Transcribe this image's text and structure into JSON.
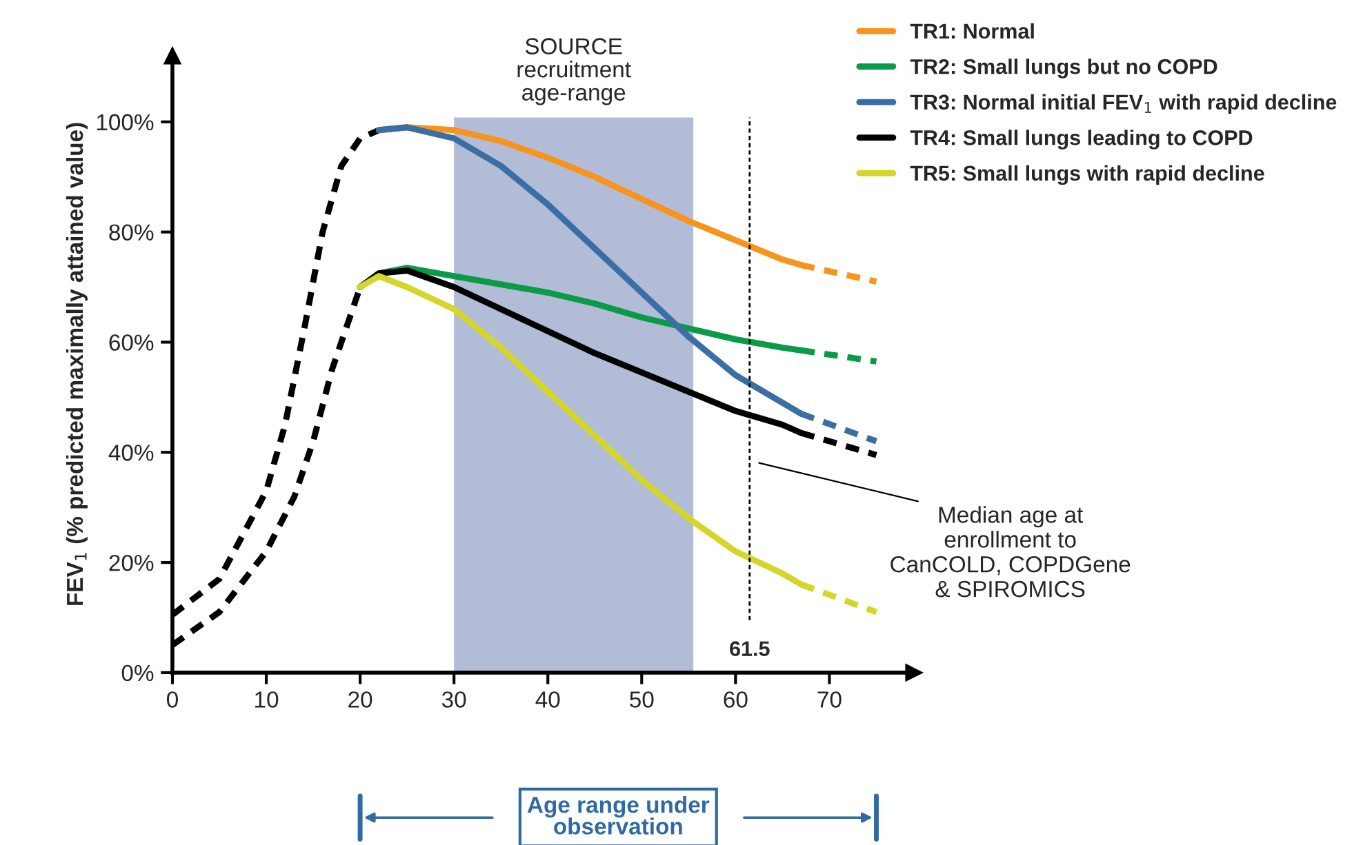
{
  "chart_data": {
    "type": "line",
    "ylabel": "FEV$_{1}$ (% predicted maximally attained value)",
    "xlim": [
      0,
      79
    ],
    "ylim": [
      0,
      112
    ],
    "xticks": [
      0,
      10,
      20,
      30,
      40,
      50,
      60,
      70
    ],
    "yticks": [
      {
        "value": 0,
        "label": "0%"
      },
      {
        "value": 20,
        "label": "20%"
      },
      {
        "value": 40,
        "label": "40%"
      },
      {
        "value": 60,
        "label": "60%"
      },
      {
        "value": 80,
        "label": "80%"
      },
      {
        "value": 100,
        "label": "100%"
      }
    ],
    "grid": false,
    "legend": "top right",
    "marker": "none",
    "series": [
      {
        "color": "#000000",
        "line_style": "dashed",
        "x": [
          0,
          5,
          10,
          12,
          14,
          16,
          18,
          20,
          22
        ],
        "values": [
          10.5,
          17,
          33,
          45,
          62,
          80,
          92,
          97,
          98.5
        ]
      },
      {
        "color": "#000000",
        "line_style": "dashed",
        "x": [
          0,
          5,
          10,
          13,
          15,
          17,
          19,
          20
        ],
        "values": [
          5,
          11,
          22,
          32,
          42,
          55,
          65,
          70
        ]
      },
      {
        "name": "TR1: Normal",
        "color": "#f7941d",
        "line_style": "solid",
        "x": [
          22,
          25,
          30,
          35,
          40,
          45,
          50,
          55,
          60,
          65,
          67
        ],
        "values": [
          98.5,
          99,
          98.5,
          96.5,
          93.5,
          90,
          86,
          82,
          78.5,
          75,
          74
        ]
      },
      {
        "name": "TR2: Small lungs but no COPD",
        "color": "#0a9a48",
        "line_style": "solid",
        "x": [
          20,
          22,
          25,
          30,
          35,
          40,
          45,
          50,
          55,
          60,
          65,
          67
        ],
        "values": [
          70,
          72.5,
          73.5,
          72,
          70.5,
          69,
          67,
          64.5,
          62.5,
          60.5,
          59,
          58.5
        ]
      },
      {
        "name": "TR3: Normal initial FEV$_{1}$ with rapid decline",
        "color": "#3a6ea5",
        "line_style": "solid",
        "x": [
          22,
          25,
          30,
          35,
          40,
          45,
          50,
          55,
          60,
          65,
          67
        ],
        "values": [
          98.5,
          99,
          97,
          92,
          85,
          77,
          69,
          61,
          54,
          49,
          47
        ]
      },
      {
        "name": "TR4: Small lungs leading to COPD",
        "color": "#000000",
        "line_style": "solid",
        "x": [
          20,
          22,
          25,
          30,
          35,
          40,
          45,
          50,
          55,
          60,
          65,
          67
        ],
        "values": [
          70,
          72.5,
          73,
          70,
          66,
          62,
          58,
          54.5,
          51,
          47.5,
          45,
          43.5
        ]
      },
      {
        "name": "TR5: Small lungs with rapid decline",
        "color": "#d4d62a",
        "line_style": "solid",
        "x": [
          20,
          22,
          25,
          30,
          35,
          40,
          45,
          50,
          55,
          60,
          65,
          67
        ],
        "values": [
          70,
          72,
          70,
          66,
          59,
          51,
          43,
          35,
          28,
          22,
          18,
          16
        ]
      },
      {
        "color": "#f7941d",
        "line_style": "dashed",
        "x": [
          67,
          75
        ],
        "values": [
          74,
          71
        ]
      },
      {
        "color": "#0a9a48",
        "line_style": "dashed",
        "x": [
          67,
          75
        ],
        "values": [
          58.5,
          56.5
        ]
      },
      {
        "color": "#3a6ea5",
        "line_style": "dashed",
        "x": [
          67,
          75
        ],
        "values": [
          47,
          42
        ]
      },
      {
        "color": "#000000",
        "line_style": "dashed",
        "x": [
          67,
          75
        ],
        "values": [
          43.5,
          39.5
        ]
      },
      {
        "color": "#d4d62a",
        "line_style": "dashed",
        "x": [
          67,
          75
        ],
        "values": [
          16,
          11
        ]
      }
    ],
    "bands": [
      {
        "axis": "x",
        "from": 30,
        "to": 55.5,
        "label": "SOURCE\nrecruitment\nage-range",
        "color": "#b3bcd6"
      }
    ],
    "ref_lines": [
      {
        "axis": "x",
        "value": 61.5,
        "label": "61.5",
        "color": "#000000",
        "line_style": "dashed"
      }
    ],
    "annotations": [
      "Median age at\nenrollment to\nCanCOLD, COPDGene\n& SPIROMICS",
      "Age range under\nobservation"
    ]
  }
}
